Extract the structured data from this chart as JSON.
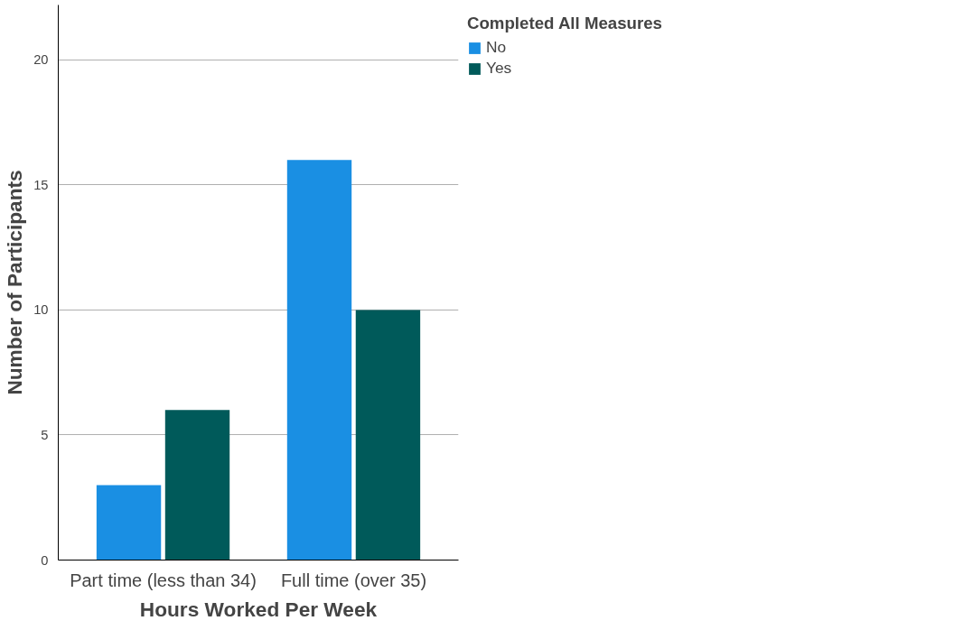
{
  "chart_data": {
    "type": "bar",
    "xlabel": "Hours Worked Per Week",
    "ylabel": "Number of Participants",
    "legend_title": "Completed All Measures",
    "categories": [
      "Part time (less than 34)",
      "Full time (over 35)"
    ],
    "series": [
      {
        "name": "No",
        "color": "#1a8fe3",
        "values": [
          3,
          16
        ]
      },
      {
        "name": "Yes",
        "color": "#005a5a",
        "values": [
          6,
          10
        ]
      }
    ],
    "ylim": [
      0,
      22.2
    ],
    "yticks": [
      0,
      5,
      10,
      15,
      20
    ],
    "grid": "y",
    "legend": "top right"
  }
}
